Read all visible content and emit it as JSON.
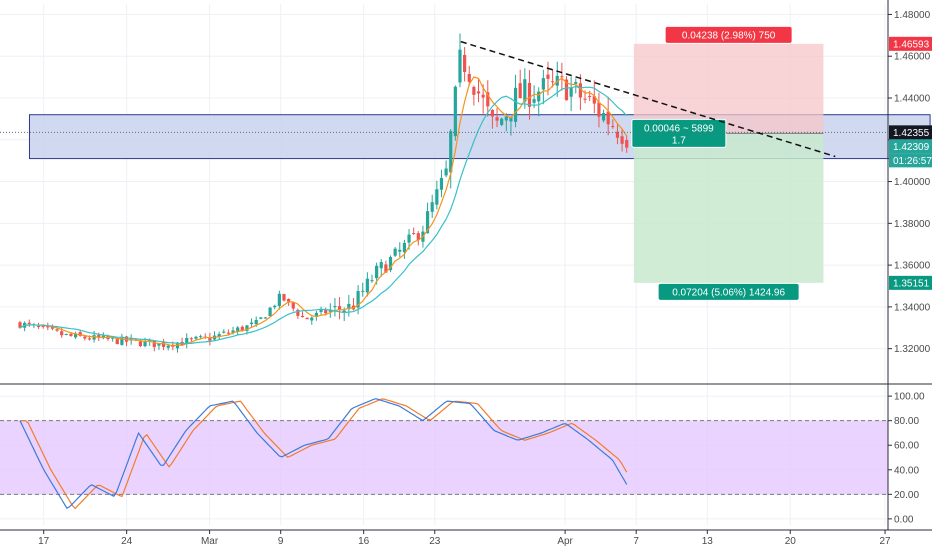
{
  "chart_data": {
    "type": "candlestick",
    "main_pane": {
      "y_ticks": [
        "1.48000",
        "1.46000",
        "1.44000",
        "1.42000",
        "1.40000",
        "1.38000",
        "1.36000",
        "1.34000",
        "1.32000"
      ],
      "y_tick_values": [
        1.48,
        1.46,
        1.44,
        1.42,
        1.4,
        1.38,
        1.36,
        1.34,
        1.32
      ],
      "ylim": [
        1.305,
        1.485
      ],
      "price_tags": [
        {
          "label": "1.46593",
          "value": 1.46593,
          "color": "#f23645"
        },
        {
          "label": "1.42355",
          "value": 1.42355,
          "color": "#131722"
        },
        {
          "label": "1.42309",
          "value": 1.42309,
          "color": "#26a69a"
        },
        {
          "label": "01:26:57",
          "value": 1.4215,
          "color": "#26a69a"
        },
        {
          "label": "1.35151",
          "value": 1.35151,
          "color": "#089981"
        }
      ],
      "trade": {
        "entry": 1.42309,
        "stop": 1.46593,
        "target": 1.35151,
        "stop_label": "0.04238 (2.98%) 750",
        "center_label_line1": "0.00046 ~ 5899",
        "center_label_line2": "1.7",
        "target_label": "0.07204 (5.06%) 1424.96",
        "start_day": 25.9,
        "end_day": 33.9
      },
      "zone": {
        "top": 1.432,
        "bottom": 1.411,
        "start_day": 0.4,
        "end_day": 38.4
      },
      "trendline": {
        "start": {
          "day": 18.6,
          "price": 1.467
        },
        "end": {
          "day": 34.4,
          "price": 1.412
        }
      },
      "candles": {
        "mode": "seeded-reconstruction",
        "keyframes_day": [
          0,
          2,
          4,
          6,
          8,
          10,
          11,
          12,
          13,
          14,
          15,
          16,
          17,
          18,
          18.6,
          19,
          20,
          21,
          22,
          23,
          24,
          24.8,
          25.6
        ],
        "keyframes_price": [
          1.332,
          1.326,
          1.324,
          1.322,
          1.325,
          1.332,
          1.345,
          1.334,
          1.338,
          1.34,
          1.356,
          1.366,
          1.378,
          1.405,
          1.46,
          1.452,
          1.425,
          1.441,
          1.444,
          1.446,
          1.438,
          1.43,
          1.422
        ]
      }
    },
    "oscillator_pane": {
      "y_ticks": [
        "100.00",
        "80.00",
        "60.00",
        "40.00",
        "20.00",
        "0.00"
      ],
      "y_tick_values": [
        100,
        80,
        60,
        40,
        20,
        0
      ],
      "ylim": [
        -5,
        105
      ],
      "band": [
        20,
        80
      ],
      "keyframes_day": [
        0,
        1,
        2,
        3,
        4,
        5,
        6,
        7,
        8,
        9,
        10,
        11,
        12,
        13,
        14,
        15,
        16,
        17,
        18,
        19,
        20,
        21,
        22,
        23,
        24,
        25,
        25.6
      ],
      "keyframes_k": [
        80,
        40,
        8,
        28,
        18,
        70,
        42,
        72,
        92,
        96,
        70,
        50,
        60,
        65,
        90,
        98,
        92,
        80,
        96,
        94,
        72,
        64,
        70,
        78,
        64,
        48,
        28
      ],
      "d_lag_days": 0.3
    },
    "x_axis": {
      "labels": [
        "17",
        "24",
        "Mar",
        "9",
        "16",
        "23",
        "Apr",
        "7",
        "13",
        "20",
        "27"
      ],
      "label_days": [
        1,
        4.5,
        8,
        11,
        14.5,
        17.5,
        23,
        26,
        29,
        32.5,
        36.5
      ]
    },
    "colors": {
      "bull": "#26a69a",
      "bear": "#ef5350",
      "ma_fast": "#f7931a",
      "ma_slow": "#38c1c6",
      "zone_fill": "#c8d2ec",
      "zone_stroke": "#2b3a8f",
      "stop_fill": "#f7c5c8",
      "target_fill": "#c8e9cc",
      "stop_tag": "#f23645",
      "target_tag": "#089981",
      "center_tag": "#089981",
      "osc_fill": "#e6c8ff",
      "osc_k": "#3d7bd6",
      "osc_d": "#f27c2b",
      "grid": "#edf0f5"
    }
  }
}
